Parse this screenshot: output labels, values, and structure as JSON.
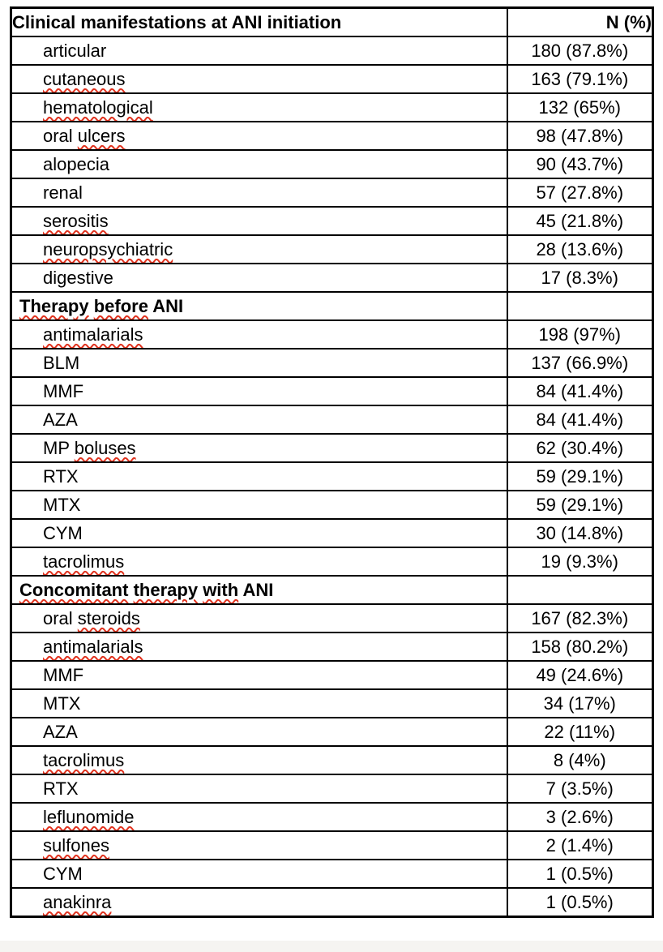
{
  "page": {
    "background": "#ffffff",
    "page_edge_color": "#f5f4f1"
  },
  "table": {
    "border_color": "#000000",
    "misspell_color": "#e0321e",
    "header": {
      "label": "Clinical manifestations at ANI initiation",
      "value": "N (%)"
    },
    "rows": [
      {
        "kind": "data",
        "parts": [
          {
            "text": "articular",
            "misspelled": false
          }
        ],
        "value": "180 (87.8%)"
      },
      {
        "kind": "data",
        "parts": [
          {
            "text": "cutaneous",
            "misspelled": true
          }
        ],
        "value": "163 (79.1%)"
      },
      {
        "kind": "data",
        "parts": [
          {
            "text": "hematological",
            "misspelled": true
          }
        ],
        "value": "132 (65%)"
      },
      {
        "kind": "data",
        "parts": [
          {
            "text": "oral ",
            "misspelled": false
          },
          {
            "text": "ulcers",
            "misspelled": true
          }
        ],
        "value": "98 (47.8%)"
      },
      {
        "kind": "data",
        "parts": [
          {
            "text": "alopecia",
            "misspelled": false
          }
        ],
        "value": "90 (43.7%)"
      },
      {
        "kind": "data",
        "parts": [
          {
            "text": "renal",
            "misspelled": false
          }
        ],
        "value": "57 (27.8%)"
      },
      {
        "kind": "data",
        "parts": [
          {
            "text": "serositis",
            "misspelled": true
          }
        ],
        "value": "45 (21.8%)"
      },
      {
        "kind": "data",
        "parts": [
          {
            "text": "neuropsychiatric",
            "misspelled": true
          }
        ],
        "value": "28 (13.6%)"
      },
      {
        "kind": "data",
        "parts": [
          {
            "text": "digestive",
            "misspelled": false
          }
        ],
        "value": "17 (8.3%)"
      },
      {
        "kind": "section",
        "parts": [
          {
            "text": "Therapy",
            "misspelled": true
          },
          {
            "text": " ",
            "misspelled": false
          },
          {
            "text": "before",
            "misspelled": true
          },
          {
            "text": " ANI",
            "misspelled": false
          }
        ],
        "value": ""
      },
      {
        "kind": "data",
        "parts": [
          {
            "text": "antimalarials",
            "misspelled": true
          }
        ],
        "value": "198 (97%)"
      },
      {
        "kind": "data",
        "parts": [
          {
            "text": "BLM",
            "misspelled": false
          }
        ],
        "value": "137 (66.9%)"
      },
      {
        "kind": "data",
        "parts": [
          {
            "text": "MMF",
            "misspelled": false
          }
        ],
        "value": "84 (41.4%)"
      },
      {
        "kind": "data",
        "parts": [
          {
            "text": "AZA",
            "misspelled": false
          }
        ],
        "value": "84 (41.4%)"
      },
      {
        "kind": "data",
        "parts": [
          {
            "text": "MP ",
            "misspelled": false
          },
          {
            "text": "boluses",
            "misspelled": true
          }
        ],
        "value": "62 (30.4%)"
      },
      {
        "kind": "data",
        "parts": [
          {
            "text": "RTX",
            "misspelled": false
          }
        ],
        "value": "59 (29.1%)"
      },
      {
        "kind": "data",
        "parts": [
          {
            "text": "MTX",
            "misspelled": false
          }
        ],
        "value": "59 (29.1%)"
      },
      {
        "kind": "data",
        "parts": [
          {
            "text": "CYM",
            "misspelled": false
          }
        ],
        "value": "30 (14.8%)"
      },
      {
        "kind": "data",
        "parts": [
          {
            "text": "tacrolimus",
            "misspelled": true
          }
        ],
        "value": "19 (9.3%)"
      },
      {
        "kind": "section",
        "parts": [
          {
            "text": "Concomitant",
            "misspelled": true
          },
          {
            "text": " ",
            "misspelled": false
          },
          {
            "text": "therapy",
            "misspelled": true
          },
          {
            "text": " ",
            "misspelled": false
          },
          {
            "text": "with",
            "misspelled": true
          },
          {
            "text": " ANI",
            "misspelled": false
          }
        ],
        "value": ""
      },
      {
        "kind": "data",
        "parts": [
          {
            "text": "oral ",
            "misspelled": false
          },
          {
            "text": "steroids",
            "misspelled": true
          }
        ],
        "value": "167 (82.3%)"
      },
      {
        "kind": "data",
        "parts": [
          {
            "text": "antimalarials",
            "misspelled": true
          }
        ],
        "value": "158 (80.2%)"
      },
      {
        "kind": "data",
        "parts": [
          {
            "text": "MMF",
            "misspelled": false
          }
        ],
        "value": "49 (24.6%)"
      },
      {
        "kind": "data",
        "parts": [
          {
            "text": "MTX",
            "misspelled": false
          }
        ],
        "value": "34 (17%)"
      },
      {
        "kind": "data",
        "parts": [
          {
            "text": "AZA",
            "misspelled": false
          }
        ],
        "value": "22 (11%)"
      },
      {
        "kind": "data",
        "parts": [
          {
            "text": "tacrolimus",
            "misspelled": true
          }
        ],
        "value": "8 (4%)"
      },
      {
        "kind": "data",
        "parts": [
          {
            "text": "RTX",
            "misspelled": false
          }
        ],
        "value": "7 (3.5%)"
      },
      {
        "kind": "data",
        "parts": [
          {
            "text": "leflunomide",
            "misspelled": true
          }
        ],
        "value": "3 (2.6%)"
      },
      {
        "kind": "data",
        "parts": [
          {
            "text": "sulfones",
            "misspelled": true
          }
        ],
        "value": "2 (1.4%)"
      },
      {
        "kind": "data",
        "parts": [
          {
            "text": "CYM",
            "misspelled": false
          }
        ],
        "value": "1 (0.5%)"
      },
      {
        "kind": "data",
        "parts": [
          {
            "text": "anakinra",
            "misspelled": true
          }
        ],
        "value": "1 (0.5%)"
      }
    ]
  }
}
